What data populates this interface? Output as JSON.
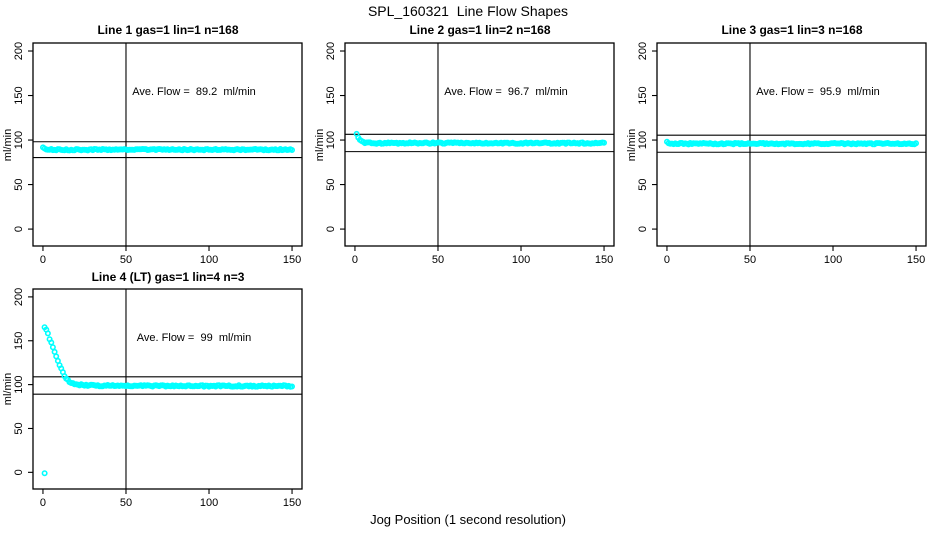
{
  "figure": {
    "title": "SPL_160321  Line Flow Shapes",
    "xlabel": "Jog Position (1 second resolution)",
    "background": "#FFFFFF",
    "foreground": "#000000",
    "point_color": "#00FFFF"
  },
  "chart_data": [
    {
      "type": "scatter",
      "title": "Line 1 gas=1 lin=1 n=168",
      "ylabel": "ml/min",
      "ave_flow": 89.2,
      "annotation": "Ave. Flow =  89.2  ml/min",
      "annotation_pos": [
        91,
        152
      ],
      "xlim": [
        -6,
        156
      ],
      "ylim": [
        -19,
        209
      ],
      "xticks": [
        0,
        50,
        100,
        150
      ],
      "yticks": [
        0,
        50,
        100,
        150,
        200
      ],
      "vline_x": 50,
      "hlines": [
        98.1,
        80.3
      ],
      "x_step": 1,
      "jitter": 0.8,
      "series_keypoints": [
        [
          0,
          92.5
        ],
        [
          1,
          90.6
        ],
        [
          2,
          89.8
        ],
        [
          4,
          89.4
        ],
        [
          8,
          89.2
        ],
        [
          150,
          89.2
        ]
      ],
      "outliers": []
    },
    {
      "type": "scatter",
      "title": "Line 2 gas=1 lin=2 n=168",
      "ylabel": "ml/min",
      "ave_flow": 96.7,
      "annotation": "Ave. Flow =  96.7  ml/min",
      "annotation_pos": [
        91,
        152
      ],
      "xlim": [
        -6,
        156
      ],
      "ylim": [
        -19,
        209
      ],
      "xticks": [
        0,
        50,
        100,
        150
      ],
      "yticks": [
        0,
        50,
        100,
        150,
        200
      ],
      "vline_x": 50,
      "hlines": [
        106.4,
        87.0
      ],
      "x_step": 1,
      "jitter": 0.8,
      "series_keypoints": [
        [
          1,
          107
        ],
        [
          2,
          103.2
        ],
        [
          3,
          100.3
        ],
        [
          4,
          98.6
        ],
        [
          5,
          97.6
        ],
        [
          7,
          96.9
        ],
        [
          10,
          96.6
        ],
        [
          150,
          96.5
        ]
      ],
      "outliers": []
    },
    {
      "type": "scatter",
      "title": "Line 3 gas=1 lin=3 n=168",
      "ylabel": "ml/min",
      "ave_flow": 95.9,
      "annotation": "Ave. Flow =  95.9  ml/min",
      "annotation_pos": [
        91,
        152
      ],
      "xlim": [
        -6,
        156
      ],
      "ylim": [
        -19,
        209
      ],
      "xticks": [
        0,
        50,
        100,
        150
      ],
      "yticks": [
        0,
        50,
        100,
        150,
        200
      ],
      "vline_x": 50,
      "hlines": [
        105.5,
        86.3
      ],
      "x_step": 1,
      "jitter": 0.8,
      "series_keypoints": [
        [
          0,
          97.6
        ],
        [
          1,
          96.6
        ],
        [
          3,
          96.1
        ],
        [
          8,
          95.9
        ],
        [
          150,
          95.9
        ]
      ],
      "outliers": []
    },
    {
      "type": "scatter",
      "title": "Line 4 (LT) gas=1 lin=4 n=3",
      "ylabel": "ml/min",
      "ave_flow": 99,
      "annotation": "Ave. Flow =  99  ml/min",
      "annotation_pos": [
        91,
        152
      ],
      "xlim": [
        -6,
        156
      ],
      "ylim": [
        -19,
        209
      ],
      "xticks": [
        0,
        50,
        100,
        150
      ],
      "yticks": [
        0,
        50,
        100,
        150,
        200
      ],
      "vline_x": 50,
      "hlines": [
        108.9,
        89.1
      ],
      "x_step": 1,
      "jitter": 0.8,
      "series_keypoints": [
        [
          1,
          165
        ],
        [
          2,
          162.5
        ],
        [
          3,
          158
        ],
        [
          4,
          152.5
        ],
        [
          5,
          147.5
        ],
        [
          6,
          142.5
        ],
        [
          7,
          137.5
        ],
        [
          8,
          132
        ],
        [
          9,
          127
        ],
        [
          10,
          122.5
        ],
        [
          11,
          118
        ],
        [
          12,
          114
        ],
        [
          13,
          110.5
        ],
        [
          14,
          107.5
        ],
        [
          15,
          105
        ],
        [
          16,
          103.2
        ],
        [
          17,
          102
        ],
        [
          18,
          101.2
        ],
        [
          20,
          100.3
        ],
        [
          22,
          99.8
        ],
        [
          25,
          99.4
        ],
        [
          30,
          99
        ],
        [
          40,
          98.8
        ],
        [
          60,
          98.6
        ],
        [
          100,
          98.5
        ],
        [
          150,
          98.4
        ]
      ],
      "outliers": [
        [
          1,
          -1
        ]
      ]
    }
  ]
}
